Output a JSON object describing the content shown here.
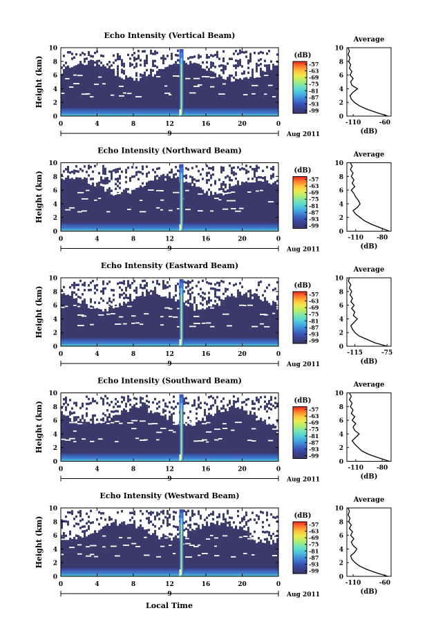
{
  "panels_common": {
    "ylabel": "Height (km)",
    "yticks": [
      "0",
      "2",
      "4",
      "6",
      "8",
      "10"
    ],
    "xticks": [
      "0",
      "4",
      "8",
      "12",
      "16",
      "20",
      "0"
    ],
    "day_label": "9",
    "date_label": "Aug 2011",
    "colorbar_unit": "(dB)",
    "colorbar_ticks": [
      "-57",
      "-63",
      "-69",
      "-75",
      "-81",
      "-87",
      "-93",
      "-99"
    ],
    "colorbar_colors": [
      "#39396b",
      "#3a3f8a",
      "#3a53b8",
      "#3f7fd4",
      "#45b0e0",
      "#57d6d2",
      "#7ee6a8",
      "#b8ef6c",
      "#eeea50",
      "#ffc23a",
      "#ff7a2a",
      "#e8241e"
    ],
    "avg_title": "Average",
    "avg_xlabel": "(dB)",
    "xlabel_bottom": "Local Time"
  },
  "chart_data": [
    {
      "type": "heatmap",
      "title": "Echo Intensity (Vertical Beam)",
      "x_range": [
        0,
        24
      ],
      "y_range": [
        0,
        10
      ],
      "clim": [
        -99,
        -57
      ],
      "average_profile": {
        "xticks": [
          "-110",
          "-60"
        ],
        "xlim": [
          -120,
          -50
        ],
        "height": [
          0,
          0.5,
          1,
          1.5,
          2,
          2.5,
          3,
          3.5,
          4,
          4.5,
          5,
          5.5,
          6,
          6.5,
          7,
          7.5,
          8,
          8.5,
          9,
          9.5,
          10
        ],
        "db": [
          -55,
          -72,
          -88,
          -100,
          -108,
          -113,
          -115,
          -110,
          -103,
          -112,
          -114,
          -110,
          -115,
          -112,
          -116,
          -114,
          -117,
          -115,
          -118,
          -116,
          -118
        ]
      }
    },
    {
      "type": "heatmap",
      "title": "Echo Intensity (Northward Beam)",
      "x_range": [
        0,
        24
      ],
      "y_range": [
        0,
        10
      ],
      "clim": [
        -99,
        -57
      ],
      "average_profile": {
        "xticks": [
          "-110",
          "-80"
        ],
        "xlim": [
          -120,
          -70
        ],
        "height": [
          0,
          0.5,
          1,
          1.5,
          2,
          2.5,
          3,
          3.5,
          4,
          4.5,
          5,
          5.5,
          6,
          6.5,
          7,
          7.5,
          8,
          8.5,
          9,
          9.5,
          10
        ],
        "db": [
          -72,
          -82,
          -92,
          -100,
          -105,
          -110,
          -113,
          -108,
          -105,
          -107,
          -110,
          -112,
          -115,
          -111,
          -114,
          -112,
          -115,
          -113,
          -116,
          -114,
          -116
        ]
      }
    },
    {
      "type": "heatmap",
      "title": "Echo Intensity (Eastward Beam)",
      "x_range": [
        0,
        24
      ],
      "y_range": [
        0,
        10
      ],
      "clim": [
        -99,
        -57
      ],
      "average_profile": {
        "xticks": [
          "-115",
          "-75"
        ],
        "xlim": [
          -125,
          -70
        ],
        "height": [
          0,
          0.5,
          1,
          1.5,
          2,
          2.5,
          3,
          3.5,
          4,
          4.5,
          5,
          5.5,
          6,
          6.5,
          7,
          7.5,
          8,
          8.5,
          9,
          9.5,
          10
        ],
        "db": [
          -75,
          -90,
          -100,
          -110,
          -115,
          -118,
          -120,
          -116,
          -112,
          -117,
          -115,
          -119,
          -116,
          -120,
          -118,
          -121,
          -119,
          -122,
          -120,
          -123,
          -122
        ]
      }
    },
    {
      "type": "heatmap",
      "title": "Echo Intensity (Southward Beam)",
      "x_range": [
        0,
        24
      ],
      "y_range": [
        0,
        10
      ],
      "clim": [
        -99,
        -57
      ],
      "average_profile": {
        "xticks": [
          "-110",
          "-80"
        ],
        "xlim": [
          -120,
          -70
        ],
        "height": [
          0,
          0.5,
          1,
          1.5,
          2,
          2.5,
          3,
          3.5,
          4,
          4.5,
          5,
          5.5,
          6,
          6.5,
          7,
          7.5,
          8,
          8.5,
          9,
          9.5,
          10
        ],
        "db": [
          -72,
          -84,
          -95,
          -103,
          -107,
          -111,
          -114,
          -110,
          -106,
          -111,
          -113,
          -110,
          -114,
          -111,
          -115,
          -113,
          -116,
          -114,
          -117,
          -115,
          -117
        ]
      }
    },
    {
      "type": "heatmap",
      "title": "Echo Intensity (Westward Beam)",
      "x_range": [
        0,
        24
      ],
      "y_range": [
        0,
        10
      ],
      "clim": [
        -99,
        -57
      ],
      "average_profile": {
        "xticks": [
          "-110",
          "-60"
        ],
        "xlim": [
          -120,
          -50
        ],
        "height": [
          0,
          0.5,
          1,
          1.5,
          2,
          2.5,
          3,
          3.5,
          4,
          4.5,
          5,
          5.5,
          6,
          6.5,
          7,
          7.5,
          8,
          8.5,
          9,
          9.5,
          10
        ],
        "db": [
          -55,
          -73,
          -88,
          -100,
          -107,
          -112,
          -114,
          -108,
          -104,
          -110,
          -113,
          -109,
          -114,
          -111,
          -116,
          -113,
          -117,
          -115,
          -118,
          -116,
          -118
        ]
      }
    }
  ]
}
